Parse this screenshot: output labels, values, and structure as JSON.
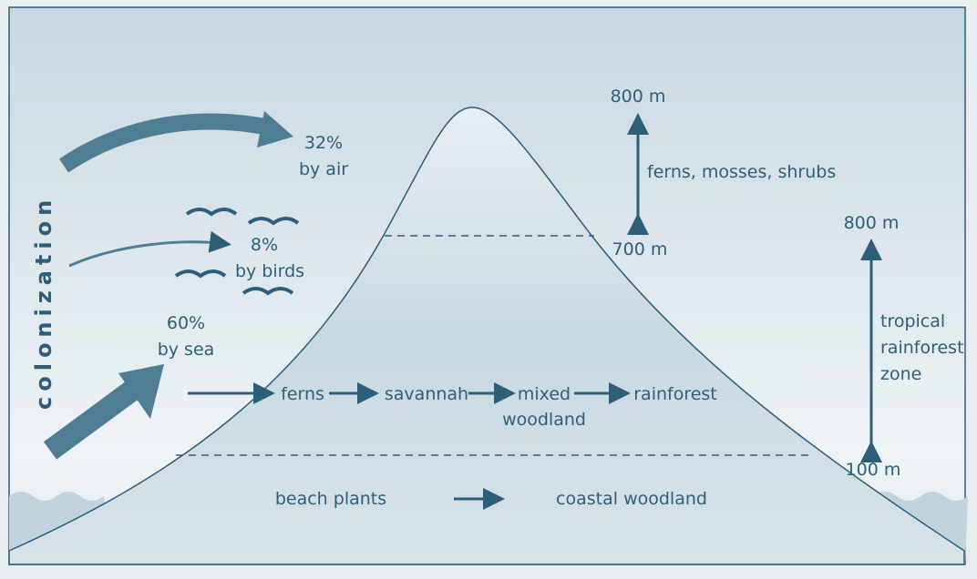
{
  "side_label": "colonization",
  "routes": [
    {
      "percent": "32%",
      "label": "by air"
    },
    {
      "percent": "8%",
      "label": "by birds"
    },
    {
      "percent": "60%",
      "label": "by sea"
    }
  ],
  "succession": [
    {
      "lines": [
        "ferns"
      ]
    },
    {
      "lines": [
        "savannah"
      ]
    },
    {
      "lines": [
        "mixed",
        "woodland"
      ]
    },
    {
      "lines": [
        "rainforest"
      ]
    }
  ],
  "coastal": [
    "beach plants",
    "coastal woodland"
  ],
  "upper_zone": {
    "top": "800 m",
    "bottom": "700 m",
    "label": "ferns, mosses, shrubs"
  },
  "rainforest_zone": {
    "top": "800 m",
    "bottom": "100 m",
    "lines": [
      "tropical",
      "rainforest",
      "zone"
    ]
  }
}
